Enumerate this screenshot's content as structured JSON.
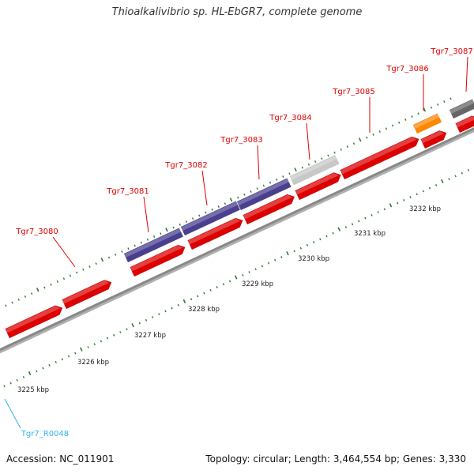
{
  "title": "Thioalkalivibrio sp. HL-EbGR7, complete genome",
  "footer": {
    "accession": "Accession: NC_011901",
    "topology": "Topology: circular; Length: 3,464,554 bp; Genes: 3,330"
  },
  "colors": {
    "forward_gene": "#dd0000",
    "purple_gene": "#4a3f8f",
    "light_gene": "#c8c8c8",
    "orange_gene": "#ff8800",
    "dark_gene": "#666666",
    "backbone": "#888888",
    "tick": "#2f7a2f",
    "gene_label": "#e00000",
    "rna_label": "#33b3e6"
  },
  "kbp_labels": [
    "3225 kbp",
    "3226 kbp",
    "3227 kbp",
    "3228 kbp",
    "3229 kbp",
    "3230 kbp",
    "3231 kbp",
    "3232 kbp"
  ],
  "gene_labels": [
    "Tgr7_3080",
    "Tgr7_3081",
    "Tgr7_3082",
    "Tgr7_3083",
    "Tgr7_3084",
    "Tgr7_3085",
    "Tgr7_3086",
    "Tgr7_3087"
  ],
  "rna_labels": [
    "Tgr7_R0048"
  ]
}
